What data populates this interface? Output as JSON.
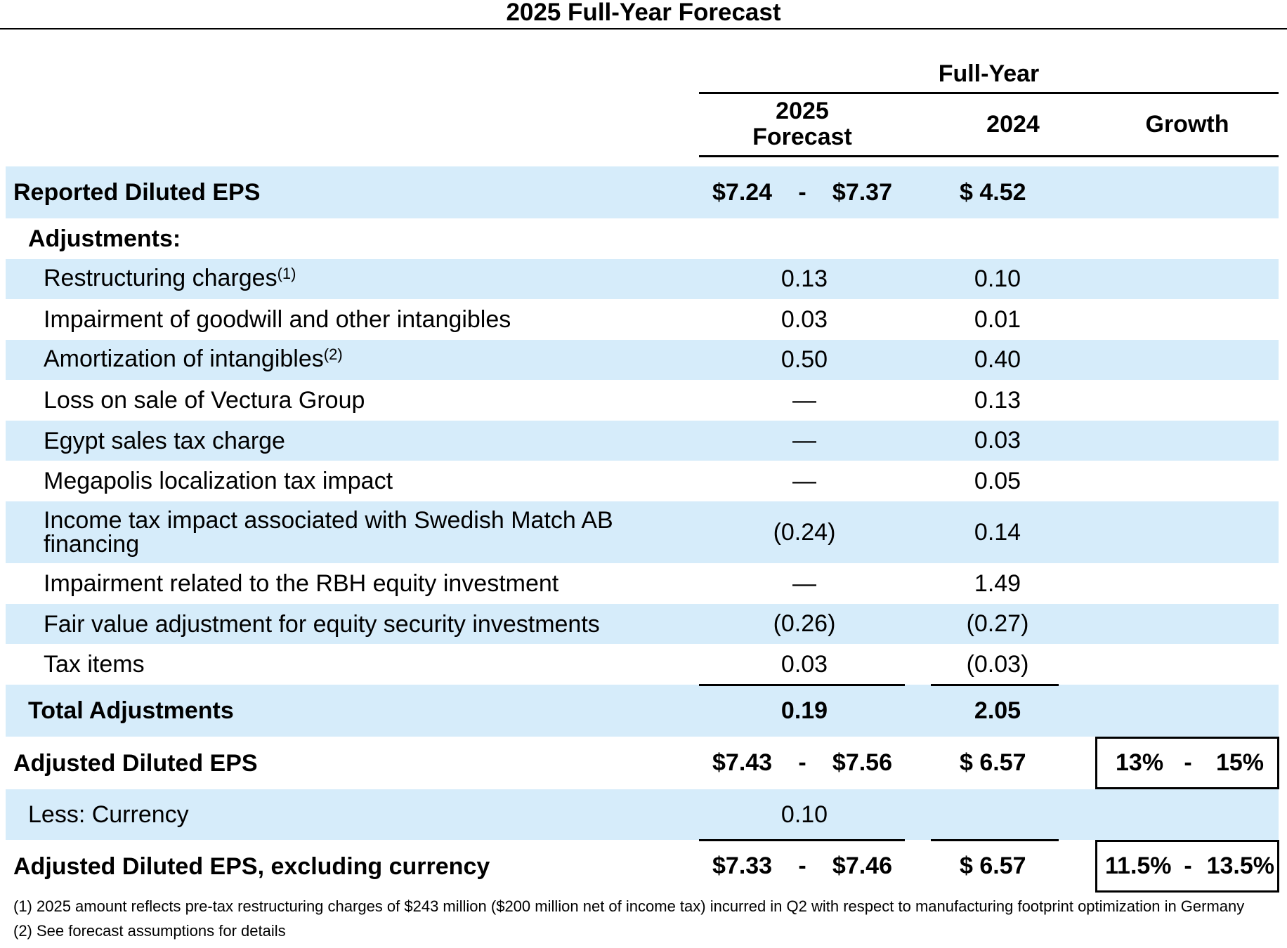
{
  "title": "2025 Full-Year Forecast",
  "header": {
    "group": "Full-Year",
    "columns": [
      "2025 Forecast",
      "2024",
      "Growth"
    ]
  },
  "rows": [
    {
      "label": "Reported Diluted EPS",
      "forecast": {
        "low": "$7.24",
        "sep": "-",
        "high": "$7.37"
      },
      "y2024": "$ 4.52"
    },
    {
      "label": "Adjustments:"
    },
    {
      "label": "Restructuring charges",
      "note": "(1)",
      "forecast": "0.13",
      "y2024": "0.10"
    },
    {
      "label": "Impairment of goodwill and other intangibles",
      "forecast": "0.03",
      "y2024": "0.01"
    },
    {
      "label": "Amortization of intangibles",
      "note": "(2)",
      "forecast": "0.50",
      "y2024": "0.40"
    },
    {
      "label": "Loss on sale of Vectura Group",
      "forecast": "—",
      "y2024": "0.13"
    },
    {
      "label": "Egypt sales tax charge",
      "forecast": "—",
      "y2024": "0.03"
    },
    {
      "label": "Megapolis localization tax impact",
      "forecast": "—",
      "y2024": "0.05"
    },
    {
      "label": "Income tax impact associated with Swedish Match AB financing",
      "forecast": "(0.24)",
      "y2024": "0.14"
    },
    {
      "label": "Impairment related to the RBH equity investment",
      "forecast": "—",
      "y2024": "1.49"
    },
    {
      "label": "Fair value adjustment for equity security investments",
      "forecast": "(0.26)",
      "y2024": "(0.27)"
    },
    {
      "label": "Tax items",
      "forecast": "0.03",
      "y2024": "(0.03)"
    },
    {
      "label": "Total Adjustments",
      "forecast": "0.19",
      "y2024": "2.05"
    },
    {
      "label": "Adjusted Diluted EPS",
      "forecast": {
        "low": "$7.43",
        "sep": "-",
        "high": "$7.56"
      },
      "y2024": "$ 6.57",
      "growth": {
        "low": "13%",
        "sep": "-",
        "high": "15%"
      }
    },
    {
      "label": "Less: Currency",
      "forecast": "0.10"
    },
    {
      "label": "Adjusted Diluted EPS, excluding currency",
      "forecast": {
        "low": "$7.33",
        "sep": "-",
        "high": "$7.46"
      },
      "y2024": "$ 6.57",
      "growth": {
        "low": "11.5%",
        "sep": "-",
        "high": "13.5%"
      }
    }
  ],
  "footnotes": [
    "(1) 2025 amount reflects pre-tax restructuring charges of $243 million ($200 million net of income tax) incurred in Q2 with respect to manufacturing footprint optimization in Germany",
    "(2) See forecast assumptions for details"
  ]
}
